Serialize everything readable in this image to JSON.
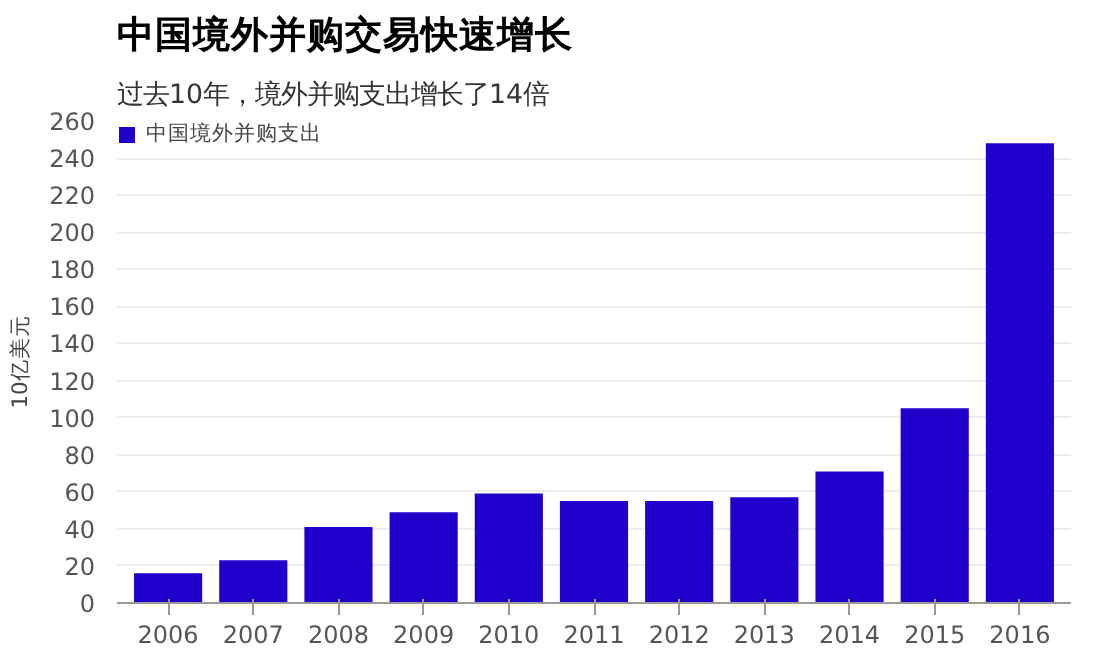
{
  "chart_data": {
    "type": "bar",
    "title": "中国境外并购交易快速增长",
    "subtitle": "过去10年，境外并购支出增长了14倍",
    "ylabel": "10亿美元",
    "categories": [
      "2006",
      "2007",
      "2008",
      "2009",
      "2010",
      "2011",
      "2012",
      "2013",
      "2014",
      "2015",
      "2016"
    ],
    "series": [
      {
        "name": "中国境外并购支出",
        "color": "#2200cc",
        "values": [
          16,
          23,
          41,
          49,
          59,
          55,
          55,
          57,
          71,
          105,
          248
        ]
      }
    ],
    "ylim": [
      0,
      260
    ],
    "yticks": [
      0,
      20,
      40,
      60,
      80,
      100,
      120,
      140,
      160,
      180,
      200,
      220,
      240,
      260
    ],
    "grid": "y",
    "legend": "top left"
  }
}
